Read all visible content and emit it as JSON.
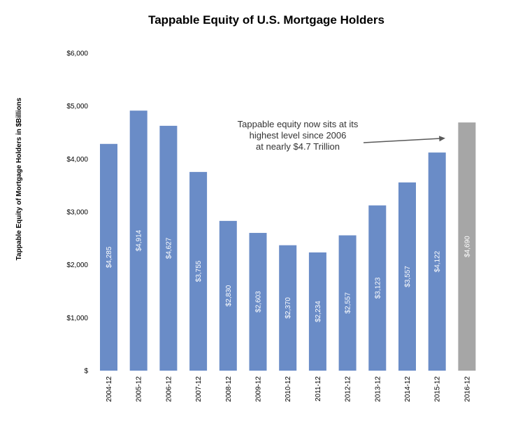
{
  "chart_data": {
    "type": "bar",
    "title": "Tappable Equity of U.S. Mortgage Holders",
    "ylabel": "Tappable Equity of Mortgage Holders in $Billions",
    "xlabel": "",
    "ylim": [
      0,
      6000
    ],
    "yticks": [
      0,
      1000,
      2000,
      3000,
      4000,
      5000,
      6000
    ],
    "ytick_labels": [
      "$",
      "$1,000",
      "$2,000",
      "$3,000",
      "$4,000",
      "$5,000",
      "$6,000"
    ],
    "grid": false,
    "categories": [
      "2004-12",
      "2005-12",
      "2006-12",
      "2007-12",
      "2008-12",
      "2009-12",
      "2010-12",
      "2011-12",
      "2012-12",
      "2013-12",
      "2014-12",
      "2015-12",
      "2016-12"
    ],
    "values": [
      4285,
      4914,
      4627,
      3755,
      2830,
      2603,
      2370,
      2234,
      2557,
      3123,
      3557,
      4122,
      4690
    ],
    "data_labels": [
      "$4,285",
      "$4,914",
      "$4,627",
      "$3,755",
      "$2,830",
      "$2,603",
      "$2,370",
      "$2,234",
      "$2,557",
      "$3,123",
      "$3,557",
      "$4,122",
      "$4,690"
    ],
    "colors": {
      "bar": "#6a8cc7",
      "highlight_bar": "#a6a6a6",
      "highlight_index": 12,
      "annotation_arrow": "#595959"
    },
    "annotation": {
      "lines": [
        "Tappable equity now sits at its",
        "highest level since 2006",
        "at nearly $4.7 Trillion"
      ]
    }
  }
}
